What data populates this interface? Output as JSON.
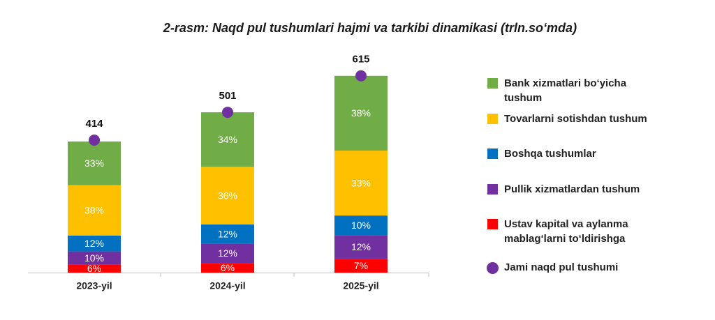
{
  "chart_data": {
    "type": "stacked-bar",
    "title": "2-rasm: Naqd pul tushumlari hajmi va tarkibi dinamikasi (trln.so‘mda)",
    "categories": [
      "2023-yil",
      "2024-yil",
      "2025-yil"
    ],
    "series": [
      {
        "name": "Bank xizmatlari bo‘yicha tushum",
        "color": "#70ad47",
        "values": [
          33,
          34,
          38
        ],
        "value_labels": [
          "33%",
          "34%",
          "38%"
        ]
      },
      {
        "name": "Tovarlarni sotishdan tushum",
        "color": "#ffc000",
        "values": [
          38,
          36,
          33
        ],
        "value_labels": [
          "38%",
          "36%",
          "33%"
        ]
      },
      {
        "name": "Boshqa tushumlar",
        "color": "#0070c0",
        "values": [
          12,
          12,
          10
        ],
        "value_labels": [
          "12%",
          "12%",
          "10%"
        ]
      },
      {
        "name": "Pullik xizmatlardan tushum",
        "color": "#7030a0",
        "values": [
          10,
          12,
          12
        ],
        "value_labels": [
          "10%",
          "12%",
          "12%"
        ]
      },
      {
        "name": "Ustav kapital va aylanma mablag‘larni to‘ldirishga",
        "color": "#ff0000",
        "values": [
          6,
          6,
          7
        ],
        "value_labels": [
          "6%",
          "6%",
          "7%"
        ]
      }
    ],
    "total": {
      "name": "Jami naqd pul tushumi",
      "color": "#7030a0",
      "values": [
        414,
        501,
        615
      ]
    }
  }
}
